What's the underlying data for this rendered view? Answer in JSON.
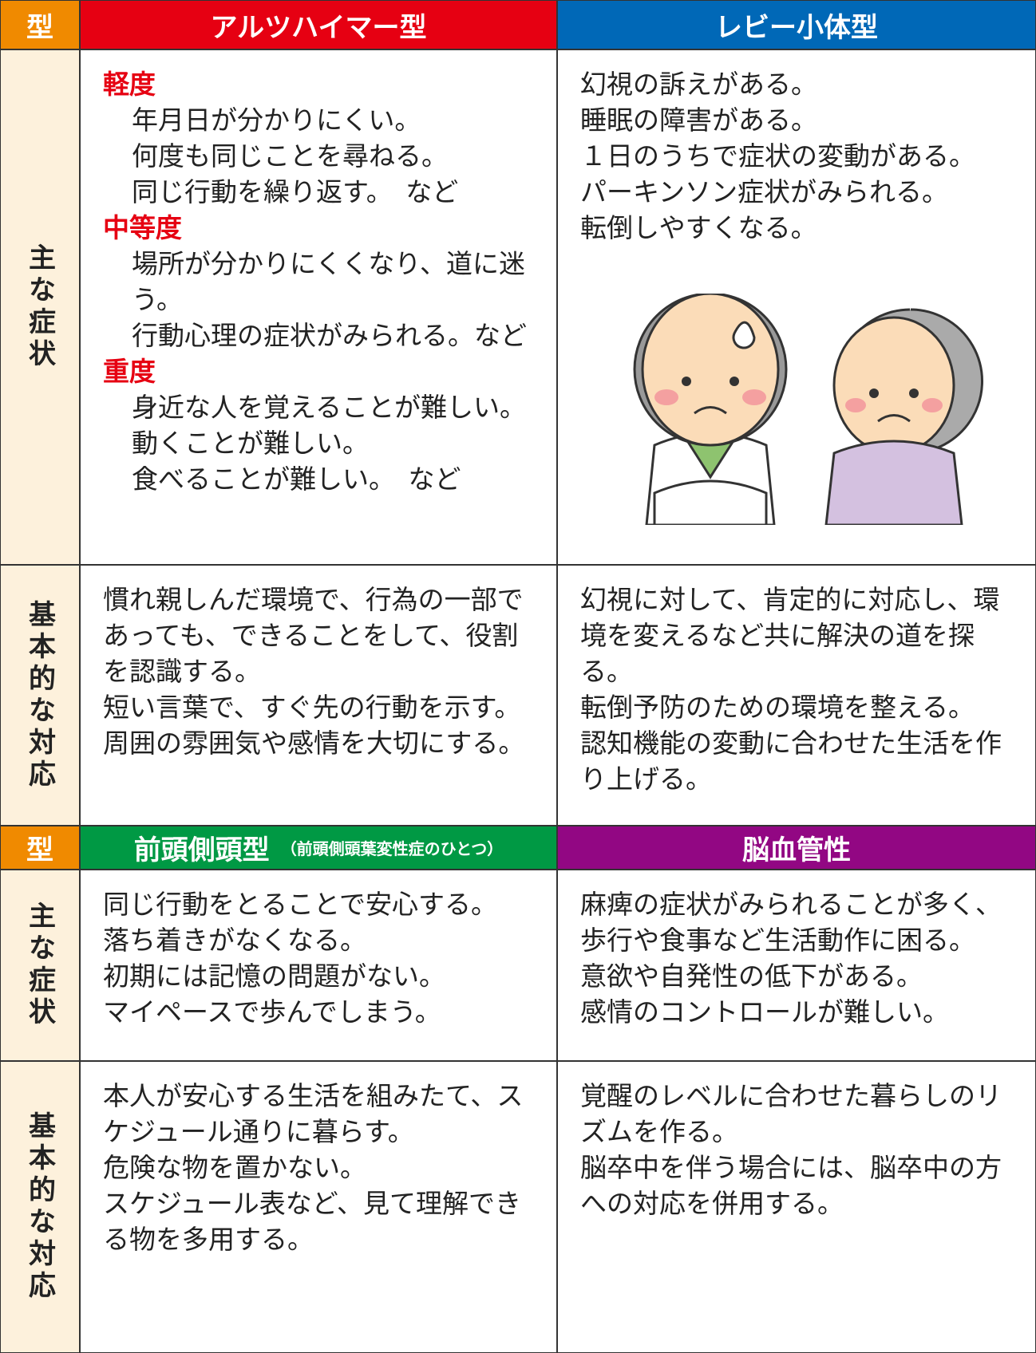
{
  "sections": [
    {
      "type_label": "型",
      "columns": [
        {
          "name": "アルツハイマー型",
          "color": "#e60012"
        },
        {
          "name": "レビー小体型",
          "color": "#0068b7"
        }
      ],
      "rows": [
        {
          "label": "主な症状",
          "cells": [
            {
              "groups": [
                {
                  "heading": "軽度",
                  "items": [
                    "年月日が分かりにくい。",
                    "何度も同じことを尋ねる。",
                    "同じ行動を繰り返す。　など"
                  ]
                },
                {
                  "heading": "中等度",
                  "items": [
                    "場所が分かりにくくなり、道に迷う。",
                    "行動心理の症状がみられる。など"
                  ]
                },
                {
                  "heading": "重度",
                  "items": [
                    "身近な人を覚えることが難しい。",
                    "動くことが難しい。",
                    "食べることが難しい。　など"
                  ]
                }
              ]
            },
            {
              "items": [
                "幻視の訴えがある。",
                "睡眠の障害がある。",
                "１日のうちで症状の変動がある。",
                "パーキンソン症状がみられる。",
                "転倒しやすくなる。"
              ]
            }
          ]
        },
        {
          "label": "基本的な対応",
          "cells": [
            {
              "items": [
                "慣れ親しんだ環境で、行為の一部であっても、できることをして、役割を認識する。",
                "短い言葉で、すぐ先の行動を示す。",
                "周囲の雰囲気や感情を大切にする。"
              ]
            },
            {
              "items": [
                "幻視に対して、肯定的に対応し、環境を変えるなど共に解決の道を探る。",
                "転倒予防のための環境を整える。",
                "認知機能の変動に合わせた生活を作り上げる。"
              ]
            }
          ]
        }
      ]
    },
    {
      "type_label": "型",
      "columns": [
        {
          "name": "前頭側頭型",
          "note": "（前頭側頭葉変性症のひとつ）",
          "color": "#009944"
        },
        {
          "name": "脳血管性",
          "color": "#920783"
        }
      ],
      "rows": [
        {
          "label": "主な症状",
          "cells": [
            {
              "items": [
                "同じ行動をとることで安心する。",
                "落ち着きがなくなる。",
                "初期には記憶の問題がない。",
                "マイペースで歩んでしまう。"
              ]
            },
            {
              "items": [
                "麻痺の症状がみられることが多く、歩行や食事など生活動作に困る。",
                "意欲や自発性の低下がある。",
                "感情のコントロールが難しい。"
              ]
            }
          ]
        },
        {
          "label": "基本的な対応",
          "cells": [
            {
              "items": [
                "本人が安心する生活を組みたて、スケジュール通りに暮らす。",
                "危険な物を置かない。",
                "スケジュール表など、見て理解できる物を多用する。"
              ]
            },
            {
              "items": [
                "覚醒のレベルに合わせた暮らしのリズムを作る。",
                "脳卒中を伴う場合には、脳卒中の方への対応を併用する。"
              ]
            }
          ]
        }
      ]
    }
  ]
}
